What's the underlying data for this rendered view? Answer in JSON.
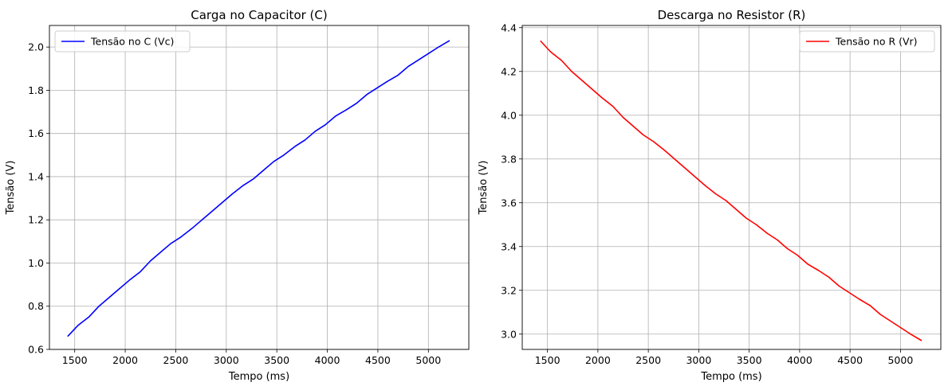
{
  "chart_data": [
    {
      "type": "line",
      "title": "Carga no Capacitor (C)",
      "xlabel": "Tempo (ms)",
      "ylabel": "Tensão (V)",
      "xlim": [
        1250,
        5400
      ],
      "ylim": [
        0.6,
        2.1
      ],
      "xticks": [
        1500,
        2000,
        2500,
        3000,
        3500,
        4000,
        4500,
        5000
      ],
      "xtick_labels": [
        "1500",
        "2000",
        "2500",
        "3000",
        "3500",
        "4000",
        "4500",
        "5000"
      ],
      "yticks": [
        0.6,
        0.8,
        1.0,
        1.2,
        1.4,
        1.6,
        1.8,
        2.0
      ],
      "ytick_labels": [
        "0.6",
        "0.8",
        "1.0",
        "1.2",
        "1.4",
        "1.6",
        "1.8",
        "2.0"
      ],
      "grid": true,
      "legend_position": "top-left",
      "series": [
        {
          "name": "Tensão no C (Vc)",
          "color": "#0000ff",
          "x": [
            1430,
            1530,
            1640,
            1740,
            1840,
            1940,
            2040,
            2150,
            2250,
            2350,
            2450,
            2550,
            2660,
            2760,
            2860,
            2960,
            3060,
            3170,
            3270,
            3370,
            3470,
            3570,
            3680,
            3780,
            3880,
            3980,
            4080,
            4190,
            4290,
            4390,
            4490,
            4590,
            4700,
            4800,
            4900,
            5000,
            5100,
            5210
          ],
          "y": [
            0.66,
            0.71,
            0.75,
            0.8,
            0.84,
            0.88,
            0.92,
            0.96,
            1.01,
            1.05,
            1.09,
            1.12,
            1.16,
            1.2,
            1.24,
            1.28,
            1.32,
            1.36,
            1.39,
            1.43,
            1.47,
            1.5,
            1.54,
            1.57,
            1.61,
            1.64,
            1.68,
            1.71,
            1.74,
            1.78,
            1.81,
            1.84,
            1.87,
            1.91,
            1.94,
            1.97,
            2.0,
            2.03
          ]
        }
      ]
    },
    {
      "type": "line",
      "title": "Descarga no Resistor (R)",
      "xlabel": "Tempo (ms)",
      "ylabel": "Tensão (V)",
      "xlim": [
        1250,
        5400
      ],
      "ylim": [
        2.93,
        4.41
      ],
      "xticks": [
        1500,
        2000,
        2500,
        3000,
        3500,
        4000,
        4500,
        5000
      ],
      "xtick_labels": [
        "1500",
        "2000",
        "2500",
        "3000",
        "3500",
        "4000",
        "4500",
        "5000"
      ],
      "yticks": [
        3.0,
        3.2,
        3.4,
        3.6,
        3.8,
        4.0,
        4.2,
        4.4
      ],
      "ytick_labels": [
        "3.0",
        "3.2",
        "3.4",
        "3.6",
        "3.8",
        "4.0",
        "4.2",
        "4.4"
      ],
      "grid": true,
      "legend_position": "top-right",
      "series": [
        {
          "name": "Tensão no R (Vr)",
          "color": "#ff0000",
          "x": [
            1430,
            1530,
            1640,
            1740,
            1840,
            1940,
            2040,
            2150,
            2250,
            2350,
            2450,
            2550,
            2660,
            2760,
            2860,
            2960,
            3060,
            3170,
            3270,
            3370,
            3470,
            3570,
            3680,
            3780,
            3880,
            3980,
            4080,
            4190,
            4290,
            4390,
            4490,
            4590,
            4700,
            4800,
            4900,
            5000,
            5100,
            5210
          ],
          "y": [
            4.34,
            4.29,
            4.25,
            4.2,
            4.16,
            4.12,
            4.08,
            4.04,
            3.99,
            3.95,
            3.91,
            3.88,
            3.84,
            3.8,
            3.76,
            3.72,
            3.68,
            3.64,
            3.61,
            3.57,
            3.53,
            3.5,
            3.46,
            3.43,
            3.39,
            3.36,
            3.32,
            3.29,
            3.26,
            3.22,
            3.19,
            3.16,
            3.13,
            3.09,
            3.06,
            3.03,
            3.0,
            2.97
          ]
        }
      ]
    }
  ]
}
